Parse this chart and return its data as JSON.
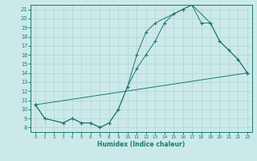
{
  "xlabel": "Humidex (Indice chaleur)",
  "xlim": [
    -0.5,
    23.5
  ],
  "ylim": [
    7.5,
    21.5
  ],
  "xticks": [
    0,
    1,
    2,
    3,
    4,
    5,
    6,
    7,
    8,
    9,
    10,
    11,
    12,
    13,
    14,
    15,
    16,
    17,
    18,
    19,
    20,
    21,
    22,
    23
  ],
  "yticks": [
    8,
    9,
    10,
    11,
    12,
    13,
    14,
    15,
    16,
    17,
    18,
    19,
    20,
    21
  ],
  "bg_color": "#cce9e9",
  "line_color": "#1a7a6e",
  "grid_color": "#b0d4d4",
  "line1_x": [
    0,
    1,
    3,
    4,
    5,
    6,
    7,
    8,
    9,
    10,
    11,
    12,
    13,
    14,
    15,
    16,
    17,
    18,
    19,
    20,
    21,
    22,
    23
  ],
  "line1_y": [
    10.5,
    9.0,
    8.5,
    9.0,
    8.5,
    8.5,
    8.0,
    8.5,
    10.0,
    12.5,
    14.5,
    16.0,
    17.5,
    19.5,
    20.5,
    21.0,
    21.5,
    19.5,
    19.5,
    17.5,
    16.5,
    15.5,
    14.0
  ],
  "line2_x": [
    0,
    1,
    3,
    4,
    5,
    6,
    7,
    8,
    9,
    10,
    11,
    12,
    13,
    15,
    16,
    17,
    19,
    20,
    22,
    23
  ],
  "line2_y": [
    10.5,
    9.0,
    8.5,
    9.0,
    8.5,
    8.5,
    8.0,
    8.5,
    10.0,
    12.5,
    16.0,
    18.5,
    19.5,
    20.5,
    21.0,
    21.5,
    19.5,
    17.5,
    15.5,
    14.0
  ],
  "line3_x": [
    0,
    23
  ],
  "line3_y": [
    10.5,
    14.0
  ],
  "marker": "+"
}
